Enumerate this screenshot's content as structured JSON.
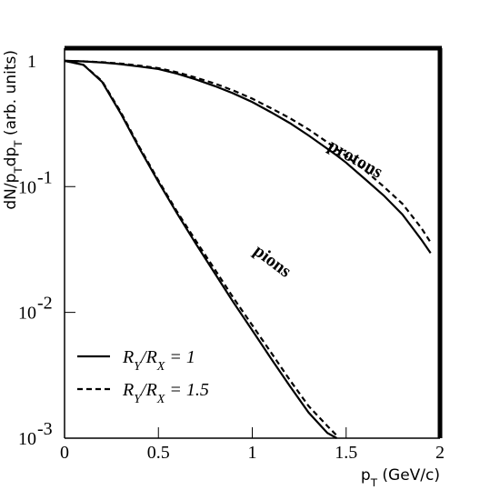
{
  "chart_data": {
    "type": "line",
    "x_label": "pT (GeV/c)",
    "y_label": "dN/pTdpT (arb. units)",
    "x": [
      0,
      0.1,
      0.2,
      0.3,
      0.4,
      0.5,
      0.6,
      0.7,
      0.8,
      0.9,
      1.0,
      1.1,
      1.2,
      1.3,
      1.4,
      1.45,
      1.5,
      1.6,
      1.7,
      1.8,
      1.9,
      1.95
    ],
    "series": [
      {
        "name": "RY/RX = 1",
        "color": "#000000",
        "dash": "solid",
        "values": [
          1.0,
          0.93,
          0.68,
          0.38,
          0.2,
          0.109,
          0.061,
          0.035,
          0.0205,
          0.012,
          0.0072,
          0.0043,
          0.0026,
          0.0016,
          0.0011,
          0.001,
          null,
          null,
          null,
          null,
          null,
          null
        ]
      },
      {
        "name": "RY/RX = 1.5",
        "color": "#000000",
        "dash": "dashed",
        "values": [
          1.0,
          0.93,
          0.69,
          0.39,
          0.205,
          0.112,
          0.063,
          0.037,
          0.022,
          0.013,
          0.0079,
          0.0048,
          0.0029,
          0.0018,
          0.00125,
          0.00105,
          null,
          null,
          null,
          null,
          null,
          null
        ]
      },
      {
        "name": "RY/RX = 1",
        "color": "#000000",
        "dash": "solid",
        "values": [
          1.0,
          0.99,
          0.97,
          0.94,
          0.9,
          0.86,
          0.79,
          0.71,
          0.63,
          0.55,
          0.47,
          0.39,
          0.32,
          0.255,
          0.2,
          0.177,
          0.155,
          0.115,
          0.085,
          0.06,
          0.038,
          0.0296
        ]
      },
      {
        "name": "RY/RX = 1.5",
        "color": "#000000",
        "dash": "dashed",
        "values": [
          1.0,
          0.99,
          0.975,
          0.95,
          0.915,
          0.875,
          0.81,
          0.735,
          0.66,
          0.58,
          0.5,
          0.42,
          0.35,
          0.285,
          0.225,
          0.199,
          0.175,
          0.135,
          0.1,
          0.073,
          0.047,
          0.036
        ]
      }
    ],
    "annotations": [
      "protons",
      "pions"
    ],
    "xlim": [
      0,
      2
    ],
    "xticks": [
      0,
      0.5,
      1,
      1.5,
      2
    ],
    "ylim": [
      0.001,
      1.26
    ],
    "log_y": true,
    "yticks": [
      {
        "value": 0.001,
        "label": "10",
        "exponent": "-3"
      },
      {
        "value": 0.01,
        "label": "10",
        "exponent": "-2"
      },
      {
        "value": 0.1,
        "label": "10",
        "exponent": "-1"
      },
      1
    ],
    "legend": "bottom-left",
    "grid": false
  }
}
